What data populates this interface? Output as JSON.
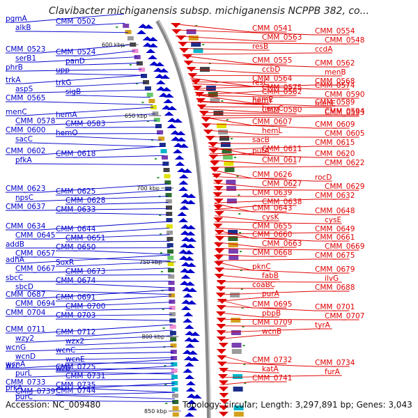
{
  "title": "Clavibacter michiganensis subsp. michiganensis NCPPB 382, co...",
  "footer": {
    "accession_label": "Accession:",
    "accession": "NC_009480",
    "topology_label": "Topology:",
    "topology": "circular",
    "length_label": "Length:",
    "length": "3,297,891 bp",
    "genes_label": "Genes:",
    "genes": "3,043"
  },
  "colors": {
    "minus_strand": "#0000cc",
    "plus_strand": "#e00000",
    "backbone": "#8a8a8a",
    "gc_tick": "#2a9a2a"
  },
  "scale_ticks": [
    "600 kbp",
    "650 kbp",
    "700 kbp",
    "750 kbp",
    "800 kbp",
    "850 kbp"
  ],
  "left_labels": [
    [
      "pgmA",
      "CMM_0502",
      "alkB"
    ],
    [
      "CMM_0523",
      "CMM_0524",
      "serB1",
      "panD",
      "phrB",
      "upp"
    ],
    [
      "trkA",
      "trkG",
      "aspS",
      "sigB",
      "CMM_0565"
    ],
    [
      "menC",
      "hemA",
      "CMM_0578",
      "CMM_0583",
      "CMM_0600",
      "hemO",
      "sacC"
    ],
    [
      "CMM_0602",
      "CMM_0618",
      "pfkA"
    ],
    [
      "CMM_0623",
      "CMM_0625",
      "npsC",
      "CMM_0628",
      "CMM_0637",
      "CMM_0633"
    ],
    [
      "CMM_0634",
      "CMM_0644",
      "CMM_0645",
      "CMM_0651",
      "addB",
      "CMM_0650",
      "CMM_0657"
    ],
    [
      "adhA",
      "SoxR",
      "CMM_0667",
      "CMM_0673",
      "sbcC",
      "CMM_0674",
      "sbcD"
    ],
    [
      "CMM_0687",
      "CMM_0691",
      "CMM_0694",
      "CMM_0700",
      "CMM_0704",
      "CMM_0703"
    ],
    [
      "CMM_0711",
      "CMM_0712",
      "wzy2",
      "wzx2",
      "wcnG",
      "wcnC",
      "wcnD",
      "wcnE",
      "wzc",
      "wzb"
    ],
    [
      "wcnA",
      "CMM_0725",
      "purL",
      "CMM_0731",
      "CMM_0733",
      "CMM_0735",
      "CMM_0739"
    ],
    [
      "prkA",
      "CMM_0744",
      "purC"
    ]
  ],
  "right_labels": [
    [
      "CMM_0541",
      "CMM_0554",
      "CMM_0563",
      "CMM_0548",
      "resB",
      "ccdA"
    ],
    [
      "CMM_0555",
      "CMM_0562",
      "ccbD",
      "menB",
      "CMM_0564",
      "CMM_0568",
      "CMM_0575"
    ],
    [
      "resC",
      "CMM_0574",
      "CMM_0582",
      "CMM_0590",
      "hemY",
      "menE",
      "CMM_0580",
      "CMM_0593"
    ],
    [
      "hemE",
      "CMM_0589",
      "hemC",
      "CMM_0594"
    ],
    [
      "CMM_0607",
      "CMM_0609",
      "hemL",
      "CMM_0605",
      "sacB",
      "CMM_0615",
      "CMM_0611"
    ],
    [
      "putA",
      "CMM_0620",
      "CMM_0617",
      "CMM_0622"
    ],
    [
      "CMM_0626",
      "rocD",
      "CMM_0627",
      "CMM_0629",
      "CMM_0639",
      "CMM_0632",
      "CMM_0638"
    ],
    [
      "CMM_0643",
      "CMM_0648",
      "cysK",
      "cysE",
      "CMM_0655",
      "CMM_0649"
    ],
    [
      "CMM_0660",
      "CMM_0661",
      "CMM_0663",
      "CMM_0669",
      "CMM_0668",
      "CMM_0675"
    ],
    [
      "pknC",
      "CMM_0679",
      "fabB",
      "ilvG",
      "coaBC",
      "CMM_0688",
      "purA"
    ],
    [
      "CMM_0695",
      "CMM_0701",
      "pbpB",
      "CMM_0707",
      "CMM_0709",
      "tyrA",
      "wcnB"
    ],
    [
      "CMM_0732",
      "CMM_0734",
      "katA",
      "furA",
      "CMM_0741"
    ]
  ]
}
